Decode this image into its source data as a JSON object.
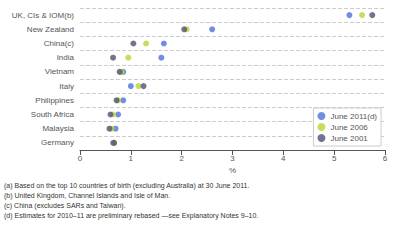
{
  "chart_data": {
    "type": "scatter",
    "orientation": "horizontal",
    "categories": [
      "UK, CIs & IOM(b)",
      "New Zealand",
      "China(c)",
      "India",
      "Vietnam",
      "Italy",
      "Philippines",
      "South Africa",
      "Malaysia",
      "Germany"
    ],
    "series": [
      {
        "name": "June 2011(d)",
        "marker": "circle",
        "values": [
          5.3,
          2.6,
          1.65,
          1.6,
          0.85,
          1.0,
          0.85,
          0.75,
          0.7,
          0.65
        ]
      },
      {
        "name": "June 2006",
        "marker": "circle",
        "values": [
          5.55,
          2.1,
          1.3,
          0.95,
          0.82,
          1.15,
          0.75,
          0.65,
          0.62,
          0.67
        ]
      },
      {
        "name": "June 2001",
        "marker": "circle",
        "values": [
          5.75,
          2.05,
          1.05,
          0.65,
          0.78,
          1.25,
          0.72,
          0.6,
          0.58,
          0.67
        ]
      }
    ],
    "xlabel": "%",
    "xlim": [
      0,
      6
    ],
    "xticks": [
      0,
      1,
      2,
      3,
      4,
      5,
      6
    ],
    "grid": true,
    "legend": "lower right",
    "annotations": [
      "(a) Based on the top 10 countries of birth (excluding Australia) at 30 June 2011.",
      "(b) United Kingdom, Channel Islands and Isle of Man.",
      "(c) China (excludes SARs and Taiwan).",
      "(d) Estimates for 2010–11 are preliminary rebased —see Explanatory Notes 9–10."
    ]
  }
}
